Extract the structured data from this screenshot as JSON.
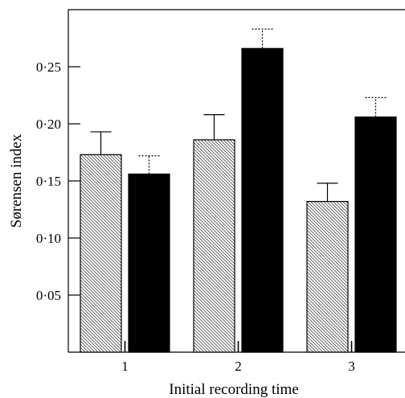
{
  "chart_data": {
    "type": "bar",
    "categories": [
      "1",
      "2",
      "3"
    ],
    "xlabel": "Initial recording time",
    "ylabel": "Sørensen index",
    "ylim": [
      0,
      0.3
    ],
    "yticks": [
      0.05,
      0.1,
      0.15,
      0.2,
      0.25
    ],
    "ytick_labels": [
      "0·05",
      "0·10",
      "0·15",
      "0·20",
      "0·25"
    ],
    "grid": false,
    "series": [
      {
        "pattern": "diagonal-hatch",
        "color": "#ffffff",
        "values": [
          0.173,
          0.186,
          0.132
        ],
        "errors": [
          0.02,
          0.022,
          0.016
        ],
        "error_style": "solid"
      },
      {
        "pattern": "solid",
        "color": "#000000",
        "values": [
          0.156,
          0.266,
          0.206
        ],
        "errors": [
          0.016,
          0.017,
          0.017
        ],
        "error_style": "dotted"
      }
    ]
  }
}
